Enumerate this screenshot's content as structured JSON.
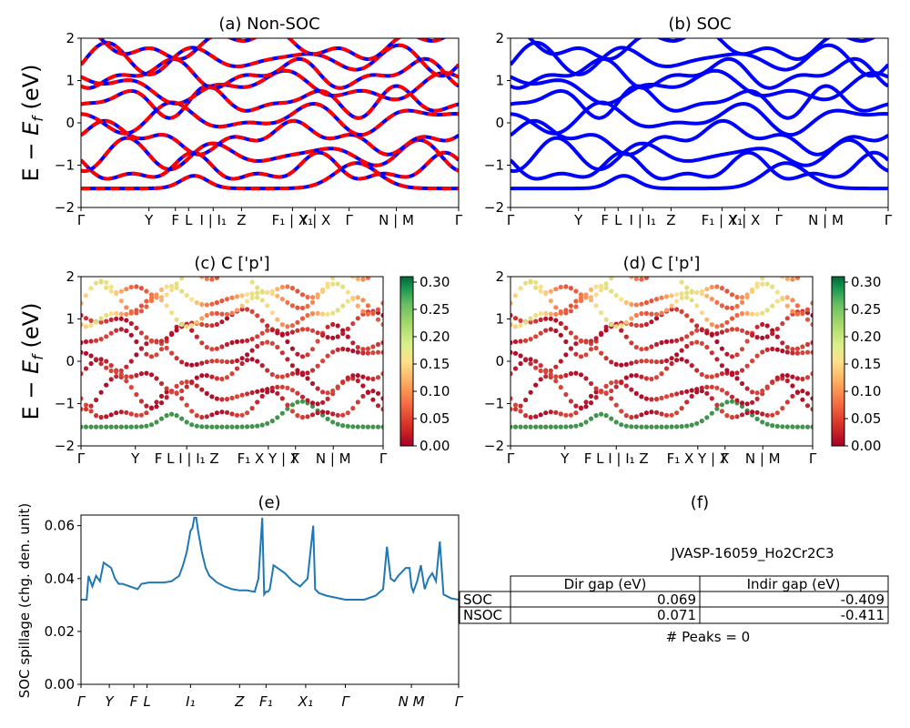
{
  "colors": {
    "nonsoc_up": "#0000ff",
    "nonsoc_dn": "#ff0000",
    "soc": "#0000ff",
    "spillage": "#1f77b4"
  },
  "band_ylabel": "E − E_f (eV)",
  "band_yticks": [
    "−2",
    "−1",
    "0",
    "1",
    "2"
  ],
  "colorbar_ticks": [
    "0.00",
    "0.05",
    "0.10",
    "0.15",
    "0.20",
    "0.25",
    "0.30"
  ],
  "panels": {
    "a": {
      "title": "(a) Non-SOC"
    },
    "b": {
      "title": "(b) SOC"
    },
    "c": {
      "title": "(c)  C ['p']"
    },
    "d": {
      "title": "(d) C ['p']"
    },
    "e": {
      "title": "(e)",
      "ylabel": "SOC spillage (chg. den. unit)",
      "yticks": [
        "0.00",
        "0.02",
        "0.04",
        "0.06"
      ]
    },
    "f": {
      "title": "(f)",
      "heading": "JVASP-16059_Ho2Cr2C3",
      "table": {
        "headers": [
          "",
          "Dir gap (eV)",
          "Indir gap (eV)"
        ],
        "rows": [
          [
            "SOC",
            "0.069",
            "-0.409"
          ],
          [
            "NSOC",
            "0.071",
            "-0.411"
          ]
        ]
      },
      "footer": "# Peaks = 0"
    }
  },
  "chart_data": [
    {
      "type": "scatter",
      "title": "(a) Non-SOC",
      "ylabel": "E − E_f (eV)",
      "ylim": [
        -2,
        2
      ],
      "x_ticks": [
        {
          "label": "Γ",
          "x": 0
        },
        {
          "label": "Y",
          "x": 0.18
        },
        {
          "label": "F",
          "x": 0.25
        },
        {
          "label": "L",
          "x": 0.285
        },
        {
          "label": "I | I₁",
          "x": 0.35
        },
        {
          "label": "Z",
          "x": 0.425
        },
        {
          "label": "F₁ | X₁",
          "x": 0.56
        },
        {
          "label": "Y | X",
          "x": 0.62
        },
        {
          "label": "Γ",
          "x": 0.71
        },
        {
          "label": "N | M",
          "x": 0.835
        },
        {
          "label": "Γ",
          "x": 1
        }
      ],
      "series": []
    },
    {
      "type": "scatter",
      "title": "(b) SOC",
      "ylim": [
        -2,
        2
      ],
      "x_ticks": [
        {
          "label": "Γ",
          "x": 0
        },
        {
          "label": "Y",
          "x": 0.18
        },
        {
          "label": "F",
          "x": 0.25
        },
        {
          "label": "L",
          "x": 0.285
        },
        {
          "label": "I | I₁",
          "x": 0.35
        },
        {
          "label": "Z",
          "x": 0.425
        },
        {
          "label": "F₁ | X₁",
          "x": 0.56
        },
        {
          "label": "Y | X",
          "x": 0.62
        },
        {
          "label": "Γ",
          "x": 0.71
        },
        {
          "label": "N | M",
          "x": 0.835
        },
        {
          "label": "Γ",
          "x": 1
        }
      ],
      "series": []
    },
    {
      "type": "scatter",
      "title": "(c)  C ['p']",
      "ylabel": "E − E_f (eV)",
      "ylim": [
        -2,
        2
      ],
      "colorbar": {
        "range": [
          0,
          0.31
        ],
        "ticks": [
          0,
          0.05,
          0.1,
          0.15,
          0.2,
          0.25,
          0.3
        ],
        "colormap": "RdYlGn"
      },
      "x_ticks": [
        {
          "label": "Γ",
          "x": 0
        },
        {
          "label": "Y",
          "x": 0.18
        },
        {
          "label": "F L I | I₁ Z",
          "x": 0.35
        },
        {
          "label": "F₁ X Y | X",
          "x": 0.62
        },
        {
          "label": "Γ",
          "x": 0.71
        },
        {
          "label": "N | M",
          "x": 0.835
        },
        {
          "label": "Γ",
          "x": 1
        }
      ]
    },
    {
      "type": "scatter",
      "title": "(d) C ['p']",
      "ylim": [
        -2,
        2
      ],
      "colorbar": {
        "range": [
          0,
          0.31
        ],
        "ticks": [
          0,
          0.05,
          0.1,
          0.15,
          0.2,
          0.25,
          0.3
        ],
        "colormap": "RdYlGn"
      },
      "x_ticks": [
        {
          "label": "Γ",
          "x": 0
        },
        {
          "label": "Y",
          "x": 0.18
        },
        {
          "label": "F L I | I₁ Z",
          "x": 0.35
        },
        {
          "label": "F₁ X Y | X",
          "x": 0.62
        },
        {
          "label": "Γ",
          "x": 0.71
        },
        {
          "label": "N | M",
          "x": 0.835
        },
        {
          "label": "Γ",
          "x": 1
        }
      ]
    },
    {
      "type": "line",
      "title": "(e)",
      "ylabel": "SOC spillage (chg. den. unit)",
      "ylim": [
        0,
        0.064
      ],
      "x_ticks": [
        {
          "label": "Γ",
          "x": 0
        },
        {
          "label": "Y",
          "x": 0.075
        },
        {
          "label": "F",
          "x": 0.14
        },
        {
          "label": "L",
          "x": 0.175
        },
        {
          "label": "I₁",
          "x": 0.29
        },
        {
          "label": "Z",
          "x": 0.42
        },
        {
          "label": "F₁",
          "x": 0.49
        },
        {
          "label": "X₁",
          "x": 0.595
        },
        {
          "label": "Γ",
          "x": 0.7
        },
        {
          "label": "N M",
          "x": 0.875
        },
        {
          "label": "Γ",
          "x": 1
        }
      ],
      "x": [
        0,
        0.015,
        0.02,
        0.03,
        0.04,
        0.05,
        0.06,
        0.07,
        0.08,
        0.09,
        0.1,
        0.11,
        0.13,
        0.15,
        0.16,
        0.18,
        0.2,
        0.22,
        0.24,
        0.26,
        0.27,
        0.28,
        0.29,
        0.295,
        0.3,
        0.305,
        0.31,
        0.32,
        0.33,
        0.34,
        0.36,
        0.38,
        0.4,
        0.42,
        0.44,
        0.46,
        0.47,
        0.48,
        0.485,
        0.49,
        0.495,
        0.5,
        0.51,
        0.52,
        0.54,
        0.56,
        0.58,
        0.6,
        0.615,
        0.62,
        0.63,
        0.65,
        0.7,
        0.75,
        0.78,
        0.8,
        0.81,
        0.82,
        0.83,
        0.84,
        0.86,
        0.87,
        0.875,
        0.88,
        0.89,
        0.9,
        0.91,
        0.92,
        0.93,
        0.94,
        0.95,
        0.96,
        0.98,
        1
      ],
      "values": [
        0.032,
        0.032,
        0.041,
        0.037,
        0.041,
        0.039,
        0.046,
        0.045,
        0.044,
        0.04,
        0.038,
        0.038,
        0.037,
        0.036,
        0.038,
        0.0385,
        0.0385,
        0.0385,
        0.039,
        0.041,
        0.045,
        0.05,
        0.058,
        0.059,
        0.063,
        0.063,
        0.058,
        0.05,
        0.044,
        0.041,
        0.0385,
        0.037,
        0.036,
        0.0355,
        0.0355,
        0.035,
        0.04,
        0.063,
        0.034,
        0.035,
        0.035,
        0.036,
        0.045,
        0.044,
        0.042,
        0.039,
        0.037,
        0.04,
        0.06,
        0.036,
        0.0345,
        0.0335,
        0.032,
        0.032,
        0.0335,
        0.036,
        0.052,
        0.04,
        0.039,
        0.041,
        0.044,
        0.044,
        0.037,
        0.035,
        0.039,
        0.045,
        0.036,
        0.04,
        0.042,
        0.039,
        0.054,
        0.034,
        0.0325,
        0.032
      ]
    }
  ]
}
